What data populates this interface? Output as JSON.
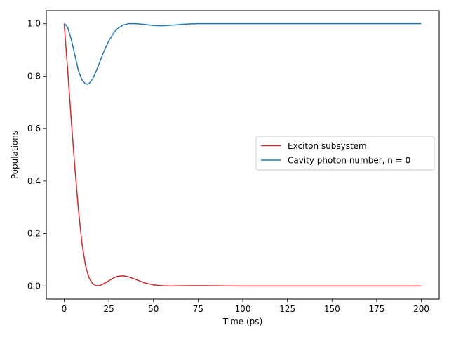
{
  "chart_data": {
    "type": "line",
    "title": "",
    "xlabel": "Time (ps)",
    "ylabel": "Populations",
    "xlim": [
      -10,
      210
    ],
    "ylim": [
      -0.05,
      1.05
    ],
    "xticks": [
      0,
      25,
      50,
      75,
      100,
      125,
      150,
      175,
      200
    ],
    "xtick_labels": [
      "0",
      "25",
      "50",
      "75",
      "100",
      "125",
      "150",
      "175",
      "200"
    ],
    "yticks": [
      0.0,
      0.2,
      0.4,
      0.6,
      0.8,
      1.0
    ],
    "ytick_labels": [
      "0.0",
      "0.2",
      "0.4",
      "0.6",
      "0.8",
      "1.0"
    ],
    "grid": false,
    "legend_position": "center-right",
    "series": [
      {
        "name": "Exciton subsystem",
        "color": "#d62728",
        "x": [
          0,
          2,
          4,
          6,
          8,
          10,
          12,
          14,
          16,
          18,
          20,
          22,
          25,
          28,
          30,
          33,
          36,
          40,
          45,
          50,
          55,
          60,
          65,
          70,
          75,
          80,
          90,
          100,
          125,
          150,
          175,
          200
        ],
        "y": [
          1.0,
          0.82,
          0.63,
          0.45,
          0.29,
          0.16,
          0.075,
          0.03,
          0.008,
          0.001,
          0.002,
          0.008,
          0.02,
          0.032,
          0.037,
          0.039,
          0.035,
          0.025,
          0.012,
          0.004,
          0.001,
          0.0,
          0.0005,
          0.001,
          0.001,
          0.0008,
          0.0003,
          0.0,
          0.0,
          0.0,
          0.0,
          0.0
        ]
      },
      {
        "name": "Cavity photon number, n = 0",
        "color": "#1f77b4",
        "x": [
          0,
          1,
          2,
          4,
          6,
          8,
          10,
          12,
          13,
          14,
          16,
          18,
          20,
          22,
          25,
          28,
          30,
          33,
          36,
          40,
          45,
          50,
          55,
          60,
          65,
          70,
          75,
          80,
          90,
          100,
          125,
          150,
          175,
          200
        ],
        "y": [
          1.0,
          0.995,
          0.985,
          0.94,
          0.88,
          0.82,
          0.785,
          0.77,
          0.769,
          0.772,
          0.79,
          0.82,
          0.855,
          0.89,
          0.935,
          0.968,
          0.982,
          0.995,
          1.0,
          1.0,
          0.997,
          0.993,
          0.992,
          0.994,
          0.997,
          0.999,
          1.0,
          1.0,
          1.0,
          1.0,
          1.0,
          1.0,
          1.0,
          1.0
        ]
      }
    ]
  }
}
